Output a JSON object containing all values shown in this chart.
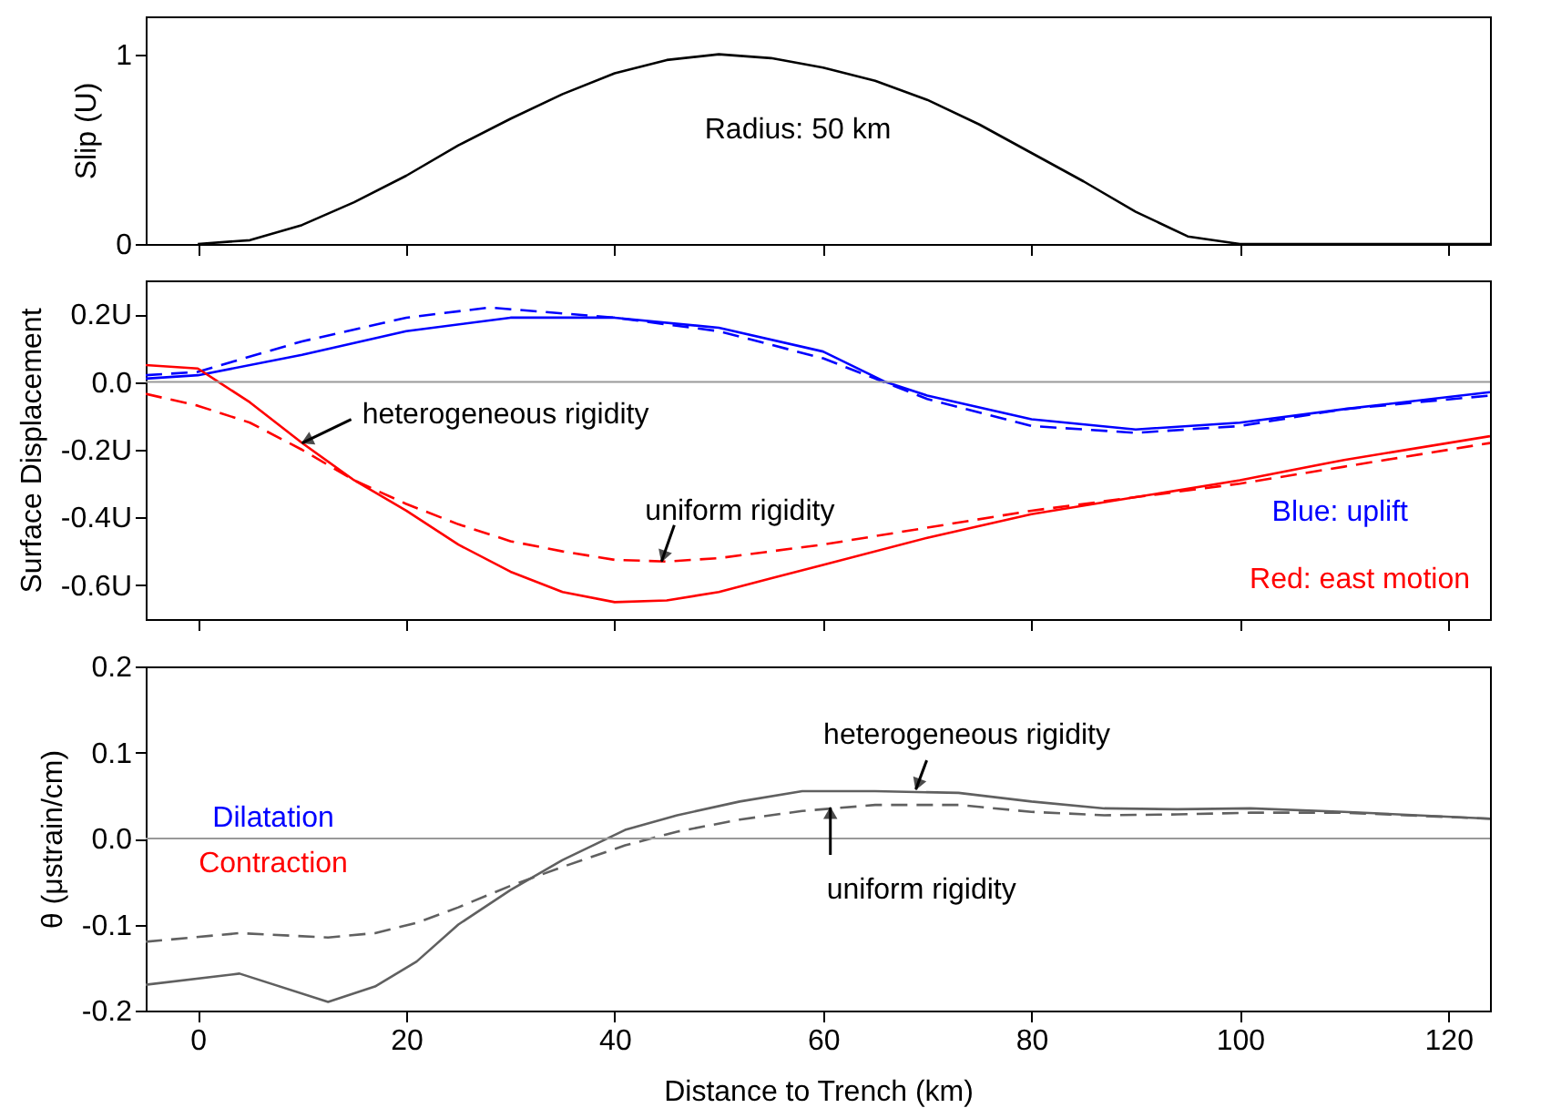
{
  "chart_data": [
    {
      "type": "line",
      "ylabel": "Slip (U)",
      "xlim": [
        -5,
        124
      ],
      "xticks": [
        0,
        20,
        40,
        60,
        80,
        100,
        120
      ],
      "ylim": [
        0,
        1.2
      ],
      "yticks": [
        0,
        1
      ],
      "tick_labels": "y",
      "grid": false,
      "series": [
        {
          "color": "#000000",
          "line_style": "solid",
          "x": [
            0,
            5,
            10,
            15,
            20,
            25,
            30,
            35,
            40,
            45,
            50,
            55,
            60,
            65,
            70,
            75,
            80,
            85,
            90,
            95,
            100,
            124
          ],
          "values": [
            0,
            0.02,
            0.1,
            0.22,
            0.36,
            0.52,
            0.66,
            0.79,
            0.9,
            0.97,
            1.0,
            0.98,
            0.93,
            0.86,
            0.76,
            0.63,
            0.48,
            0.33,
            0.17,
            0.04,
            0,
            0
          ]
        }
      ],
      "annotations": [
        "Radius: 50 km"
      ]
    },
    {
      "type": "line",
      "ylabel": "Surface Displacement",
      "xlim": [
        -5,
        124
      ],
      "xticks": [
        0,
        20,
        40,
        60,
        80,
        100,
        120
      ],
      "ylim": [
        -0.7,
        0.3
      ],
      "yticks": [
        {
          "value": -0.6,
          "label": "-0.6U"
        },
        {
          "value": -0.4,
          "label": "-0.4U"
        },
        {
          "value": -0.2,
          "label": "-0.2U"
        },
        {
          "value": 0,
          "label": "0.0"
        },
        {
          "value": 0.2,
          "label": "0.2U"
        }
      ],
      "tick_labels": "y",
      "grid": false,
      "series": [
        {
          "color": "#0000ff",
          "line_style": "solid",
          "x": [
            -5,
            0,
            10,
            20,
            30,
            40,
            50,
            60,
            66,
            70,
            80,
            90,
            100,
            110,
            124
          ],
          "values": [
            0.01,
            0.02,
            0.08,
            0.15,
            0.19,
            0.19,
            0.16,
            0.09,
            0.0,
            -0.04,
            -0.11,
            -0.14,
            -0.12,
            -0.08,
            -0.03
          ]
        },
        {
          "color": "#0000ff",
          "line_style": "dashed",
          "x": [
            -5,
            0,
            10,
            20,
            28,
            40,
            50,
            60,
            65,
            70,
            80,
            90,
            100,
            110,
            124
          ],
          "values": [
            0.02,
            0.03,
            0.12,
            0.19,
            0.22,
            0.19,
            0.15,
            0.07,
            0.01,
            -0.05,
            -0.13,
            -0.15,
            -0.13,
            -0.08,
            -0.04
          ]
        },
        {
          "color": "#ff0000",
          "line_style": "solid",
          "x": [
            -5,
            0,
            2,
            5,
            10,
            15,
            20,
            25,
            30,
            35,
            40,
            45,
            50,
            55,
            60,
            70,
            80,
            90,
            100,
            110,
            124
          ],
          "values": [
            0.05,
            0.04,
            0.0,
            -0.06,
            -0.18,
            -0.29,
            -0.38,
            -0.48,
            -0.56,
            -0.62,
            -0.65,
            -0.645,
            -0.62,
            -0.58,
            -0.54,
            -0.46,
            -0.39,
            -0.34,
            -0.29,
            -0.23,
            -0.16
          ]
        },
        {
          "color": "#ff0000",
          "line_style": "dashed",
          "x": [
            -5,
            0,
            5,
            10,
            15,
            20,
            25,
            30,
            35,
            40,
            45,
            50,
            55,
            60,
            70,
            80,
            90,
            100,
            110,
            124
          ],
          "values": [
            -0.035,
            -0.07,
            -0.12,
            -0.2,
            -0.29,
            -0.36,
            -0.42,
            -0.47,
            -0.5,
            -0.525,
            -0.53,
            -0.52,
            -0.5,
            -0.48,
            -0.43,
            -0.38,
            -0.34,
            -0.3,
            -0.25,
            -0.18
          ]
        }
      ],
      "ref_lines": [
        {
          "axis": "y",
          "value": 0,
          "color": "#999999"
        }
      ],
      "annotations": [
        "Blue: uplift",
        "Red: east motion",
        {
          "text": "heterogeneous rigidity",
          "x": 10,
          "y": -0.18
        },
        {
          "text": "uniform rigidity",
          "x": 44.5,
          "y": -0.53
        }
      ]
    },
    {
      "type": "line",
      "xlabel": "Distance to Trench (km)",
      "ylabel": "θ (μstrain/cm)",
      "xlim": [
        -5,
        124
      ],
      "xticks": [
        0,
        20,
        40,
        60,
        80,
        100,
        120
      ],
      "ylim": [
        -0.2,
        0.2
      ],
      "yticks": [
        -0.2,
        -0.1,
        {
          "value": 0,
          "label": "0.0"
        },
        0.1,
        0.2
      ],
      "grid": false,
      "x": [
        -5,
        4,
        12.5,
        17,
        21,
        25,
        30,
        35,
        41,
        46,
        52,
        58,
        65,
        73,
        80,
        87,
        94,
        101,
        110,
        124
      ],
      "series": [
        {
          "color": "#606060",
          "line_style": "solid",
          "values": [
            -0.17,
            -0.157,
            -0.19,
            -0.172,
            -0.143,
            -0.1,
            -0.06,
            -0.025,
            0.01,
            0.027,
            0.043,
            0.055,
            0.055,
            0.053,
            0.043,
            0.035,
            0.034,
            0.035,
            0.031,
            0.023
          ]
        },
        {
          "color": "#606060",
          "line_style": "dashed",
          "values": [
            -0.12,
            -0.11,
            -0.115,
            -0.11,
            -0.098,
            -0.08,
            -0.055,
            -0.033,
            -0.008,
            0.008,
            0.022,
            0.032,
            0.039,
            0.039,
            0.031,
            0.027,
            0.028,
            0.03,
            0.03,
            0.023
          ]
        }
      ],
      "ref_lines": [
        {
          "axis": "y",
          "value": 0,
          "color": "#999999"
        }
      ],
      "annotations": [
        "Dilatation",
        "Contraction",
        {
          "text": "heterogeneous rigidity",
          "x": 68.9,
          "y": 0.057
        },
        {
          "text": "uniform rigidity",
          "x": 60.7,
          "y": 0.036
        }
      ]
    }
  ]
}
